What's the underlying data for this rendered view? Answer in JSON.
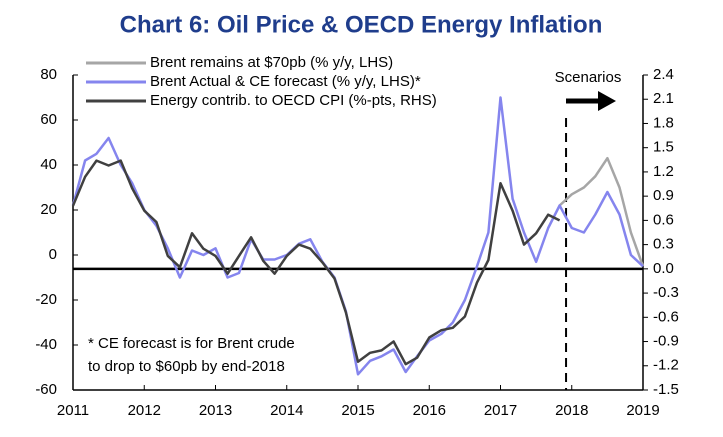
{
  "chart_data": {
    "type": "line",
    "title": "Chart 6: Oil Price & OECD Energy Inflation",
    "x": [
      2011,
      2011.17,
      2011.33,
      2011.5,
      2011.67,
      2011.83,
      2012,
      2012.17,
      2012.33,
      2012.5,
      2012.67,
      2012.83,
      2013,
      2013.17,
      2013.33,
      2013.5,
      2013.67,
      2013.83,
      2014,
      2014.17,
      2014.33,
      2014.5,
      2014.67,
      2014.83,
      2015,
      2015.17,
      2015.33,
      2015.5,
      2015.67,
      2015.83,
      2016,
      2016.17,
      2016.33,
      2016.5,
      2016.67,
      2016.83,
      2017,
      2017.17,
      2017.33,
      2017.5,
      2017.67,
      2017.83,
      2018,
      2018.17,
      2018.33,
      2018.5,
      2018.67,
      2018.83,
      2019
    ],
    "series": [
      {
        "name": "Brent remains at $70pb (% y/y, LHS)",
        "color": "#a6a6a6",
        "axis": "y",
        "values": [
          null,
          null,
          null,
          null,
          null,
          null,
          null,
          null,
          null,
          null,
          null,
          null,
          null,
          null,
          null,
          null,
          null,
          null,
          null,
          null,
          null,
          null,
          null,
          null,
          null,
          null,
          null,
          null,
          null,
          null,
          null,
          null,
          null,
          null,
          null,
          null,
          null,
          null,
          null,
          null,
          null,
          22,
          27,
          30,
          35,
          43,
          30,
          10,
          -5
        ]
      },
      {
        "name": "Brent Actual & CE forecast (% y/y, LHS)*",
        "color": "#8585ee",
        "axis": "y",
        "values": [
          22,
          42,
          45,
          52,
          40,
          32,
          20,
          13,
          3,
          -10,
          2,
          0,
          3,
          -10,
          -8,
          7,
          -2,
          -2,
          0,
          5,
          7,
          -3,
          -10,
          -25,
          -53,
          -47,
          -45,
          -42,
          -52,
          -45,
          -38,
          -35,
          -30,
          -20,
          -5,
          10,
          70,
          25,
          10,
          -3,
          12,
          22,
          12,
          10,
          18,
          28,
          18,
          0,
          -5
        ]
      },
      {
        "name": "Energy contrib. to OECD CPI (%-pts, RHS)",
        "color": "#404040",
        "axis": "y2",
        "values": [
          0.78,
          1.14,
          1.34,
          1.28,
          1.34,
          1.0,
          0.72,
          0.58,
          0.16,
          0.02,
          0.44,
          0.25,
          0.16,
          -0.06,
          0.16,
          0.39,
          0.1,
          -0.06,
          0.16,
          0.3,
          0.25,
          0.08,
          -0.12,
          -0.54,
          -1.15,
          -1.04,
          -1.01,
          -0.9,
          -1.18,
          -1.1,
          -0.85,
          -0.76,
          -0.73,
          -0.59,
          -0.17,
          0.11,
          1.06,
          0.72,
          0.3,
          0.44,
          0.67,
          0.6,
          null,
          null,
          null,
          null,
          null,
          null,
          null
        ]
      }
    ],
    "xlim": [
      2011,
      2019
    ],
    "xticks": [
      2011,
      2012,
      2013,
      2014,
      2015,
      2016,
      2017,
      2018,
      2019
    ],
    "ylim": [
      -60,
      80
    ],
    "yticks": [
      80,
      60,
      40,
      20,
      0,
      -20,
      -40,
      -60
    ],
    "y2lim": [
      -1.5,
      2.4
    ],
    "y2ticks": [
      2.4,
      2.1,
      1.8,
      1.5,
      1.2,
      0.9,
      0.6,
      0.3,
      {
        "value": 0,
        "label": "0.0"
      },
      -0.3,
      -0.6,
      -0.9,
      -1.2,
      -1.5
    ],
    "legend": "upper left",
    "scenario_label": "Scenarios",
    "scenario_x": 2017.92,
    "note": [
      "* CE forecast is for Brent crude",
      "to drop to $60pb by end-2018"
    ]
  }
}
